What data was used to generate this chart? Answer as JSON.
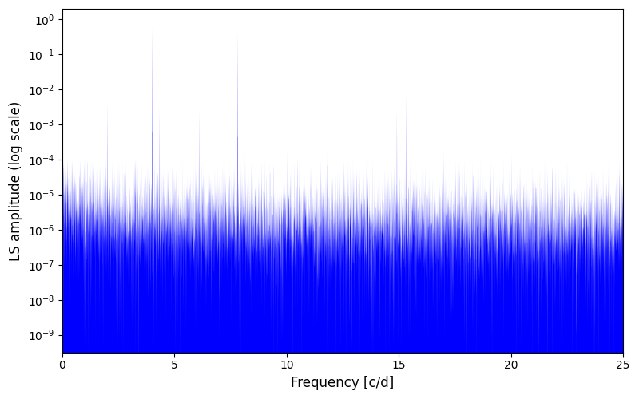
{
  "title": "",
  "xlabel": "Frequency [c/d]",
  "ylabel": "LS amplitude (log scale)",
  "xlim": [
    0,
    25
  ],
  "ylim_log": [
    -9.5,
    0.3
  ],
  "line_color": "#0000ff",
  "background_color": "#ffffff",
  "figsize": [
    8.0,
    5.0
  ],
  "dpi": 100,
  "seed": 12345,
  "n_points": 10000,
  "freq_max": 25.0,
  "peak_freqs": [
    2.0,
    4.0,
    4.3,
    6.1,
    7.8,
    8.1,
    9.5,
    10.0,
    11.8,
    14.9,
    15.3,
    17.0,
    20.0,
    23.5
  ],
  "peak_amps": [
    0.005,
    0.65,
    0.003,
    0.003,
    0.45,
    0.003,
    0.0003,
    0.0002,
    0.07,
    0.003,
    0.008,
    0.0002,
    0.00015,
    1.5e-05
  ]
}
